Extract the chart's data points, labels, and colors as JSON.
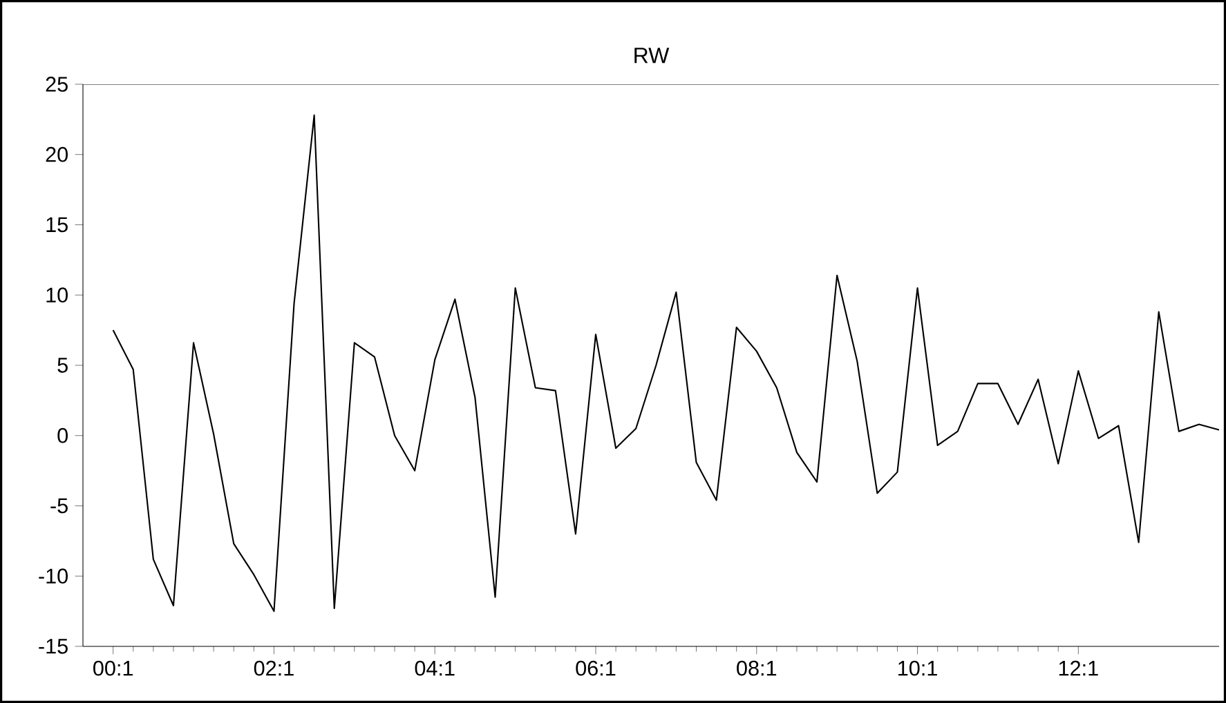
{
  "chart_data": {
    "type": "line",
    "title": "RW",
    "categories": [
      "00:1",
      null,
      null,
      null,
      null,
      null,
      null,
      null,
      "02:1",
      null,
      null,
      null,
      null,
      null,
      null,
      null,
      "04:1",
      null,
      null,
      null,
      null,
      null,
      null,
      null,
      "06:1",
      null,
      null,
      null,
      null,
      null,
      null,
      null,
      "08:1",
      null,
      null,
      null,
      null,
      null,
      null,
      null,
      "10:1",
      null,
      null,
      null,
      null,
      null,
      null,
      null,
      "12:1",
      null,
      null,
      null,
      null,
      null,
      null,
      null
    ],
    "series": [
      {
        "color": "#000000",
        "values": [
          7.5,
          4.7,
          -8.8,
          -12.1,
          6.6,
          0.1,
          -7.7,
          -9.9,
          -12.5,
          9.4,
          22.8,
          -12.3,
          6.6,
          5.6,
          0.0,
          -2.5,
          5.4,
          9.7,
          2.7,
          -11.5,
          10.5,
          3.4,
          3.2,
          -7.0,
          7.2,
          -0.9,
          0.5,
          5.0,
          10.2,
          -1.9,
          -4.6,
          7.7,
          6.0,
          3.4,
          -1.2,
          -3.3,
          11.4,
          5.3,
          -4.1,
          -2.6,
          10.5,
          -0.7,
          0.3,
          3.7,
          3.7,
          0.8,
          4.0,
          -2.0,
          4.6,
          -0.2,
          0.7,
          -7.6,
          8.8,
          0.3,
          0.8,
          0.4
        ]
      }
    ],
    "ylim": [
      -15,
      25
    ],
    "yticks": [
      -15,
      -10,
      -5,
      0,
      5,
      10,
      15,
      20,
      25
    ],
    "marker": "none",
    "line_style": "solid"
  }
}
